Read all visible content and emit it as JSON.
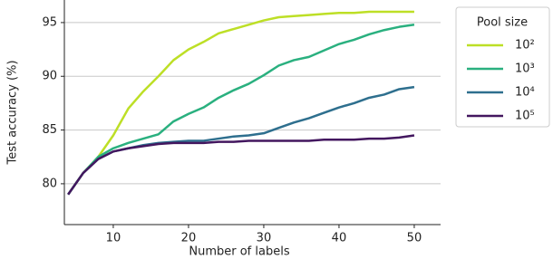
{
  "chart_data": {
    "type": "line",
    "x_label": "Number of labels",
    "y_label": "Test accuracy (%)",
    "x": [
      4,
      6,
      8,
      10,
      12,
      14,
      16,
      18,
      20,
      22,
      24,
      26,
      28,
      30,
      32,
      34,
      36,
      38,
      40,
      42,
      44,
      46,
      48,
      50
    ],
    "xlim": [
      3.5,
      53.5
    ],
    "xticks": [
      10,
      20,
      30,
      40,
      50
    ],
    "ylim": [
      76.2,
      97.1
    ],
    "yticks": [
      80,
      85,
      90,
      95
    ],
    "grid": true,
    "legend_title": "Pool size",
    "legend_position": "outside-right",
    "series": [
      {
        "name": "10²",
        "color": "#bddf26",
        "values": [
          79,
          81,
          82.5,
          84.5,
          87,
          88.6,
          90,
          91.5,
          92.5,
          93.2,
          94,
          94.4,
          94.8,
          95.2,
          95.5,
          95.6,
          95.7,
          95.8,
          95.9,
          95.9,
          96,
          96,
          96,
          96
        ]
      },
      {
        "name": "10³",
        "color": "#2ab07f",
        "values": [
          79,
          81,
          82.5,
          83.3,
          83.8,
          84.2,
          84.6,
          85.8,
          86.5,
          87.1,
          88,
          88.7,
          89.3,
          90.1,
          91,
          91.5,
          91.8,
          92.4,
          93,
          93.4,
          93.9,
          94.3,
          94.6,
          94.8
        ]
      },
      {
        "name": "10⁴",
        "color": "#2e6f8e",
        "values": [
          79,
          81,
          82.3,
          83,
          83.3,
          83.6,
          83.8,
          83.9,
          84,
          84,
          84.2,
          84.4,
          84.5,
          84.7,
          85.2,
          85.7,
          86.1,
          86.6,
          87.1,
          87.5,
          88,
          88.3,
          88.8,
          89
        ]
      },
      {
        "name": "10⁵",
        "color": "#43175f",
        "values": [
          79,
          81,
          82.3,
          83,
          83.3,
          83.5,
          83.7,
          83.8,
          83.8,
          83.8,
          83.9,
          83.9,
          84,
          84,
          84,
          84,
          84,
          84.1,
          84.1,
          84.1,
          84.2,
          84.2,
          84.3,
          84.5
        ]
      }
    ]
  }
}
